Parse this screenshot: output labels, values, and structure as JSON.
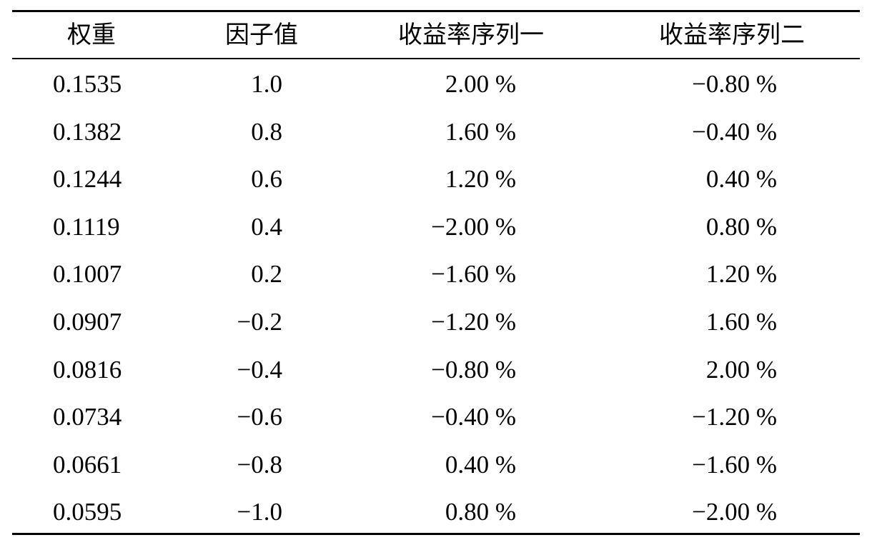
{
  "table": {
    "headers": [
      "权重",
      "因子值",
      "收益率序列一",
      "收益率序列二"
    ],
    "rows": [
      [
        "0.1535",
        "1.0",
        "2.00 %",
        "−0.80 %"
      ],
      [
        "0.1382",
        "0.8",
        "1.60 %",
        "−0.40 %"
      ],
      [
        "0.1244",
        "0.6",
        "1.20 %",
        "0.40 %"
      ],
      [
        "0.1119",
        "0.4",
        "−2.00 %",
        "0.80 %"
      ],
      [
        "0.1007",
        "0.2",
        "−1.60 %",
        "1.20 %"
      ],
      [
        "0.0907",
        "−0.2",
        "−1.20 %",
        "1.60 %"
      ],
      [
        "0.0816",
        "−0.4",
        "−0.80 %",
        "2.00 %"
      ],
      [
        "0.0734",
        "−0.6",
        "−0.40 %",
        "−1.20 %"
      ],
      [
        "0.0661",
        "−0.8",
        "0.40 %",
        "−1.60 %"
      ],
      [
        "0.0595",
        "−1.0",
        "0.80 %",
        "−2.00 %"
      ]
    ]
  }
}
